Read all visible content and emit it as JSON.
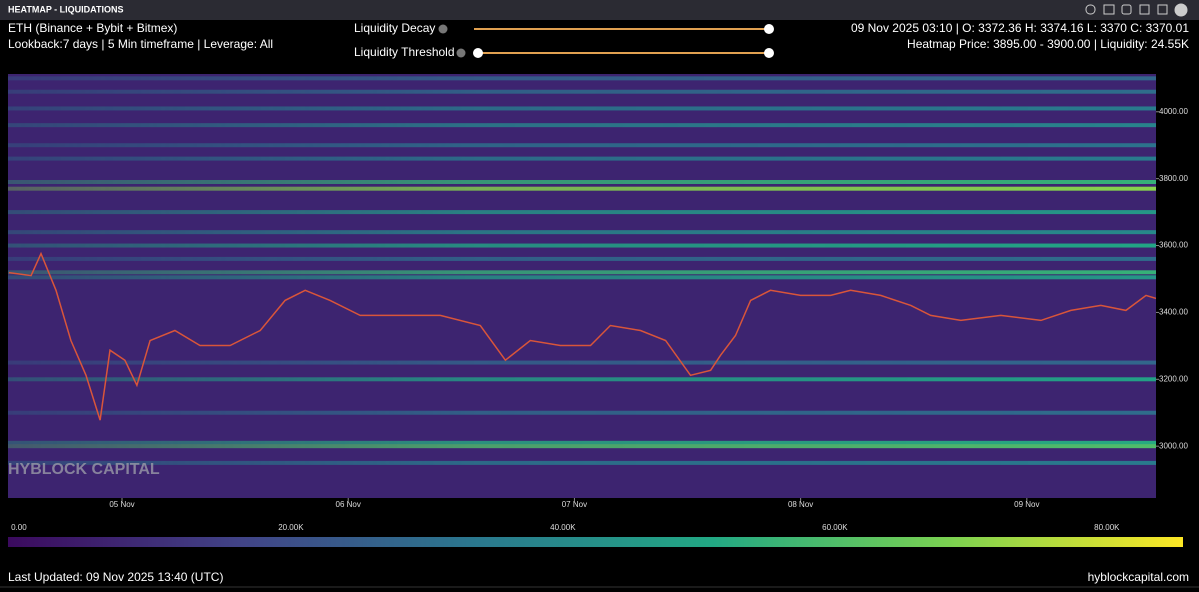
{
  "panel": {
    "title": "HEATMAP - LIQUIDATIONS"
  },
  "info": {
    "pair": "ETH (Binance + Bybit + Bitmex)",
    "settings": "Lookback:7 days | 5 Min timeframe | Leverage: All",
    "ohlc": "09 Nov 2025 03:10 | O: 3372.36 H: 3374.16 L: 3370 C: 3370.01",
    "heatmap_info": "Heatmap Price: 3895.00 - 3900.00 | Liquidity: 24.55K"
  },
  "controls": [
    {
      "label": "Liquidity Decay"
    },
    {
      "label": "Liquidity Threshold"
    }
  ],
  "watermark": "HYBLOCK CAPITAL",
  "footer": {
    "updated": "Last Updated: 09 Nov 2025 13:40 (UTC)",
    "site": "hyblockcapital.com"
  },
  "chart_data": {
    "type": "heatmap",
    "xlim": [
      0.496,
      5.571
    ],
    "xticks": [
      {
        "value": 1,
        "label": "05 Nov"
      },
      {
        "value": 2,
        "label": "06 Nov"
      },
      {
        "value": 3,
        "label": "07 Nov"
      },
      {
        "value": 4,
        "label": "08 Nov"
      },
      {
        "value": 5,
        "label": "09 Nov"
      }
    ],
    "ylim": [
      2845,
      4113
    ],
    "yticks": [
      {
        "value": 3000,
        "label": "3000.00"
      },
      {
        "value": 3200,
        "label": "3200.00"
      },
      {
        "value": 3400,
        "label": "3400.00"
      },
      {
        "value": 3600,
        "label": "3600.00"
      },
      {
        "value": 3800,
        "label": "3800.00"
      },
      {
        "value": 4000,
        "label": "4000.00"
      }
    ],
    "background": "#3d2470",
    "levels": [
      {
        "price": 4100,
        "liquidity": 28000
      },
      {
        "price": 4060,
        "liquidity": 30000
      },
      {
        "price": 4010,
        "liquidity": 35000
      },
      {
        "price": 3960,
        "liquidity": 38000
      },
      {
        "price": 3900,
        "liquidity": 32000
      },
      {
        "price": 3860,
        "liquidity": 35000
      },
      {
        "price": 3790,
        "liquidity": 55000
      },
      {
        "price": 3770,
        "liquidity": 70000
      },
      {
        "price": 3700,
        "liquidity": 45000
      },
      {
        "price": 3640,
        "liquidity": 40000
      },
      {
        "price": 3600,
        "liquidity": 50000
      },
      {
        "price": 3560,
        "liquidity": 30000
      },
      {
        "price": 3520,
        "liquidity": 55000
      },
      {
        "price": 3505,
        "liquidity": 45000
      },
      {
        "price": 3250,
        "liquidity": 28000
      },
      {
        "price": 3200,
        "liquidity": 48000
      },
      {
        "price": 3100,
        "liquidity": 30000
      },
      {
        "price": 3010,
        "liquidity": 52000
      },
      {
        "price": 3000,
        "liquidity": 60000
      },
      {
        "price": 2950,
        "liquidity": 35000
      }
    ],
    "series": [
      {
        "name": "ETH",
        "color": "#d9553a",
        "x": [
          0.5,
          0.598,
          0.642,
          0.708,
          0.774,
          0.841,
          0.903,
          0.947,
          1.013,
          1.066,
          1.124,
          1.234,
          1.345,
          1.478,
          1.611,
          1.721,
          1.81,
          1.92,
          2.053,
          2.23,
          2.407,
          2.584,
          2.695,
          2.805,
          2.938,
          3.071,
          3.159,
          3.292,
          3.403,
          3.513,
          3.602,
          3.646,
          3.712,
          3.779,
          3.867,
          4.0,
          4.133,
          4.221,
          4.354,
          4.487,
          4.575,
          4.708,
          4.885,
          5.062,
          5.195,
          5.327,
          5.438,
          5.527,
          5.571
        ],
        "values": [
          3519,
          3510,
          3576,
          3466,
          3316,
          3212,
          3078,
          3287,
          3257,
          3182,
          3316,
          3346,
          3301,
          3301,
          3346,
          3436,
          3466,
          3436,
          3391,
          3391,
          3391,
          3361,
          3257,
          3316,
          3301,
          3301,
          3361,
          3346,
          3316,
          3212,
          3227,
          3272,
          3331,
          3436,
          3466,
          3451,
          3451,
          3466,
          3451,
          3421,
          3391,
          3376,
          3391,
          3376,
          3406,
          3421,
          3406,
          3451,
          3442
        ]
      }
    ],
    "colorbar": {
      "lim": [
        -800,
        85600
      ],
      "ticks": [
        {
          "value": 0,
          "label": "0.00"
        },
        {
          "value": 20000,
          "label": "20.00K"
        },
        {
          "value": 40000,
          "label": "40.00K"
        },
        {
          "value": 60000,
          "label": "60.00K"
        },
        {
          "value": 80000,
          "label": "80.00K"
        }
      ],
      "colors": [
        "#3b0a5e",
        "#414487",
        "#2a788e",
        "#22a884",
        "#7ad151",
        "#fde725"
      ]
    }
  }
}
